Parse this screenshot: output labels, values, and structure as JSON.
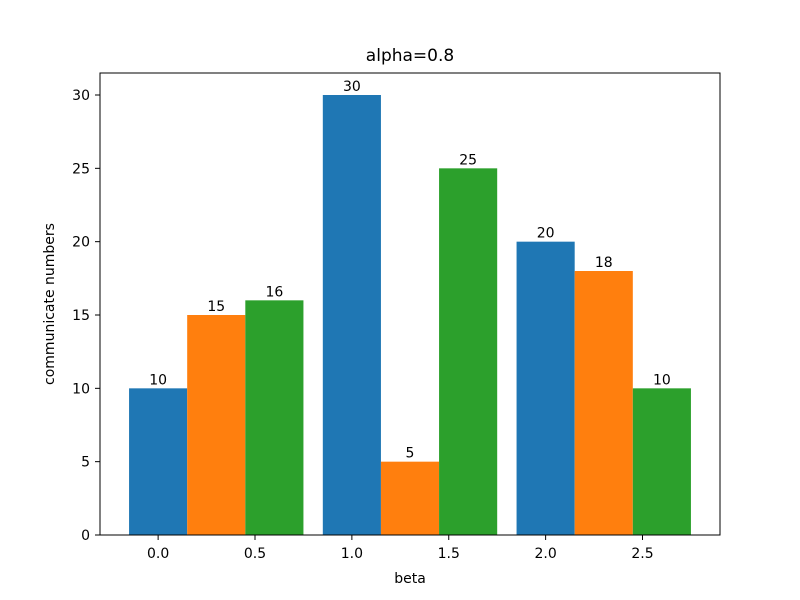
{
  "chart_data": {
    "type": "bar",
    "title": "alpha=0.8",
    "xlabel": "beta",
    "ylabel": "communicate numbers",
    "x_ticks": [
      "0.0",
      "0.5",
      "1.0",
      "1.5",
      "2.0",
      "2.5"
    ],
    "x_tick_values": [
      0.0,
      0.5,
      1.0,
      1.5,
      2.0,
      2.5
    ],
    "y_ticks": [
      "0",
      "5",
      "10",
      "15",
      "20",
      "25",
      "30"
    ],
    "y_tick_values": [
      0,
      5,
      10,
      15,
      20,
      25,
      30
    ],
    "xlim": [
      -0.3,
      2.9
    ],
    "ylim": [
      0,
      31.5
    ],
    "bar_width": 0.3,
    "bars": [
      {
        "x": 0.0,
        "value": 10,
        "label": "10",
        "color": "#1f77b4"
      },
      {
        "x": 0.3,
        "value": 15,
        "label": "15",
        "color": "#ff7f0e"
      },
      {
        "x": 0.6,
        "value": 16,
        "label": "16",
        "color": "#2ca02c"
      },
      {
        "x": 1.0,
        "value": 30,
        "label": "30",
        "color": "#1f77b4"
      },
      {
        "x": 1.3,
        "value": 5,
        "label": "5",
        "color": "#ff7f0e"
      },
      {
        "x": 1.6,
        "value": 25,
        "label": "25",
        "color": "#2ca02c"
      },
      {
        "x": 2.0,
        "value": 20,
        "label": "20",
        "color": "#1f77b4"
      },
      {
        "x": 2.3,
        "value": 18,
        "label": "18",
        "color": "#ff7f0e"
      },
      {
        "x": 2.6,
        "value": 10,
        "label": "10",
        "color": "#2ca02c"
      }
    ]
  }
}
